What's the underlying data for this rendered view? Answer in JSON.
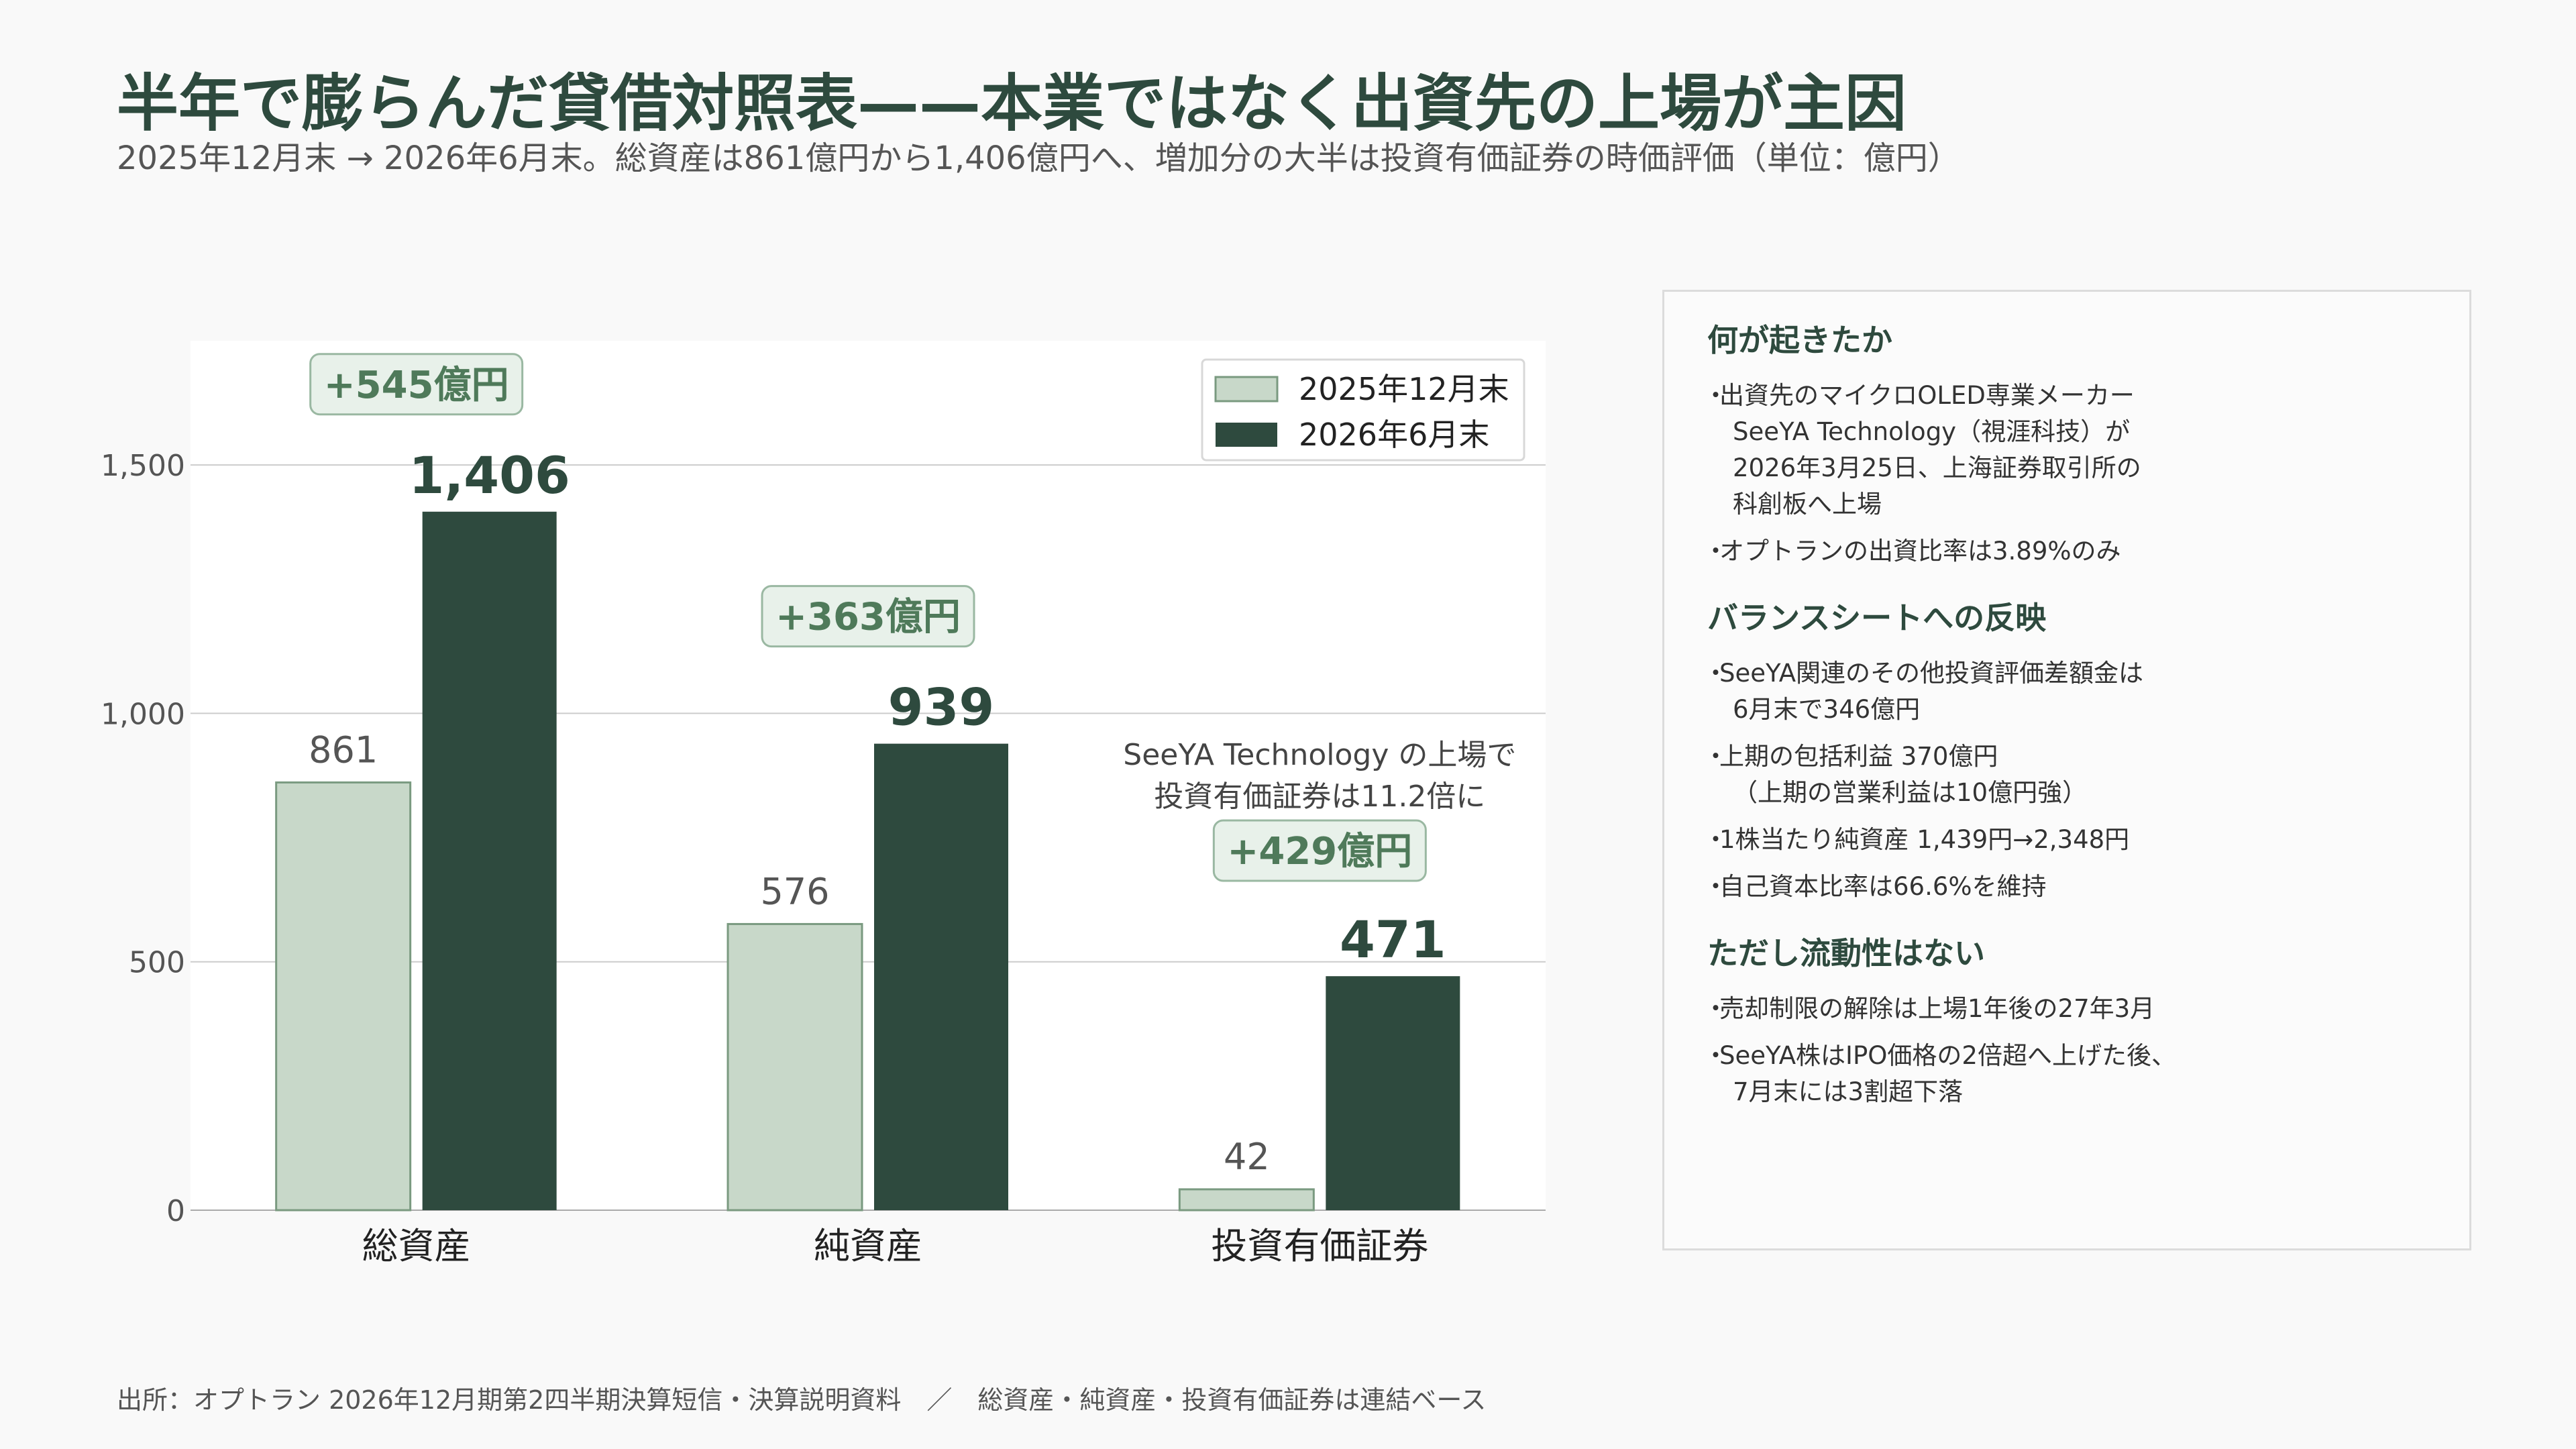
{
  "title": "半年で膨らんだ貸借対照表——本業ではなく出資先の上場が主因",
  "subtitle": "2025年12月末 → 2026年6月末。総資産は861億円から1,406億円へ、増加分の大半は投資有価証券の時価評価（単位：億円）",
  "colors": {
    "series1": "#c8d8c9",
    "series1_border": "#7a9a80",
    "series2": "#2e4a3e",
    "accent": "#4f7a5a",
    "delta_bg": "#e8f1ea",
    "grid": "#cccccc"
  },
  "chart_data": {
    "type": "bar",
    "categories": [
      "総資産",
      "純資産",
      "投資有価証券"
    ],
    "series": [
      {
        "name": "2025年12月末",
        "values": [
          861,
          576,
          42
        ]
      },
      {
        "name": "2026年6月末",
        "values": [
          1406,
          939,
          471
        ]
      }
    ],
    "value_labels": [
      [
        "861",
        "576",
        "42"
      ],
      [
        "1,406",
        "939",
        "471"
      ]
    ],
    "deltas": [
      "+545億円",
      "+363億円",
      "+429億円"
    ],
    "yticks": [
      0,
      500,
      1000,
      1500
    ],
    "ytick_labels": [
      "0",
      "500",
      "1,000",
      "1,500"
    ],
    "ylim": [
      0,
      1750
    ],
    "annotation": [
      "SeeYA Technology の上場で",
      "投資有価証券は11.2倍に"
    ],
    "legend_position": "top-right",
    "grid": true
  },
  "panel": {
    "sections": [
      {
        "heading": "何が起きたか",
        "bullets": [
          "出資先のマイクロOLED専業メーカー\nSeeYA Technology（視涯科技）が\n2026年3月25日、上海証券取引所の\n科創板へ上場",
          "オプトランの出資比率は3.89%のみ"
        ]
      },
      {
        "heading": "バランスシートへの反映",
        "bullets": [
          "SeeYA関連のその他投資評価差額金は\n6月末で346億円",
          "上期の包括利益 370億円\n（上期の営業利益は10億円強）",
          "1株当たり純資産 1,439円→2,348円",
          "自己資本比率は66.6%を維持"
        ]
      },
      {
        "heading": "ただし流動性はない",
        "bullets": [
          "売却制限の解除は上場1年後の27年3月",
          "SeeYA株はIPO価格の2倍超へ上げた後、\n7月末には3割超下落"
        ]
      }
    ]
  },
  "footnote": "出所：オプトラン 2026年12月期第2四半期決算短信・決算説明資料　／　総資産・純資産・投資有価証券は連結ベース"
}
